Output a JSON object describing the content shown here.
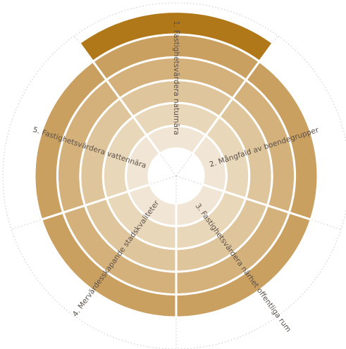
{
  "sectors": [
    {
      "label": "1. Fastighetsvärdera naturnära"
    },
    {
      "label": "2. Mångfald av boendegrupper"
    },
    {
      "label": "3. Fastighetsvärdera närhet offentliga rum"
    },
    {
      "label": "4. Mervärdesskapande stadskvaliteter"
    },
    {
      "label": "5. Fastighetsvärdera vattennära"
    }
  ]
}
